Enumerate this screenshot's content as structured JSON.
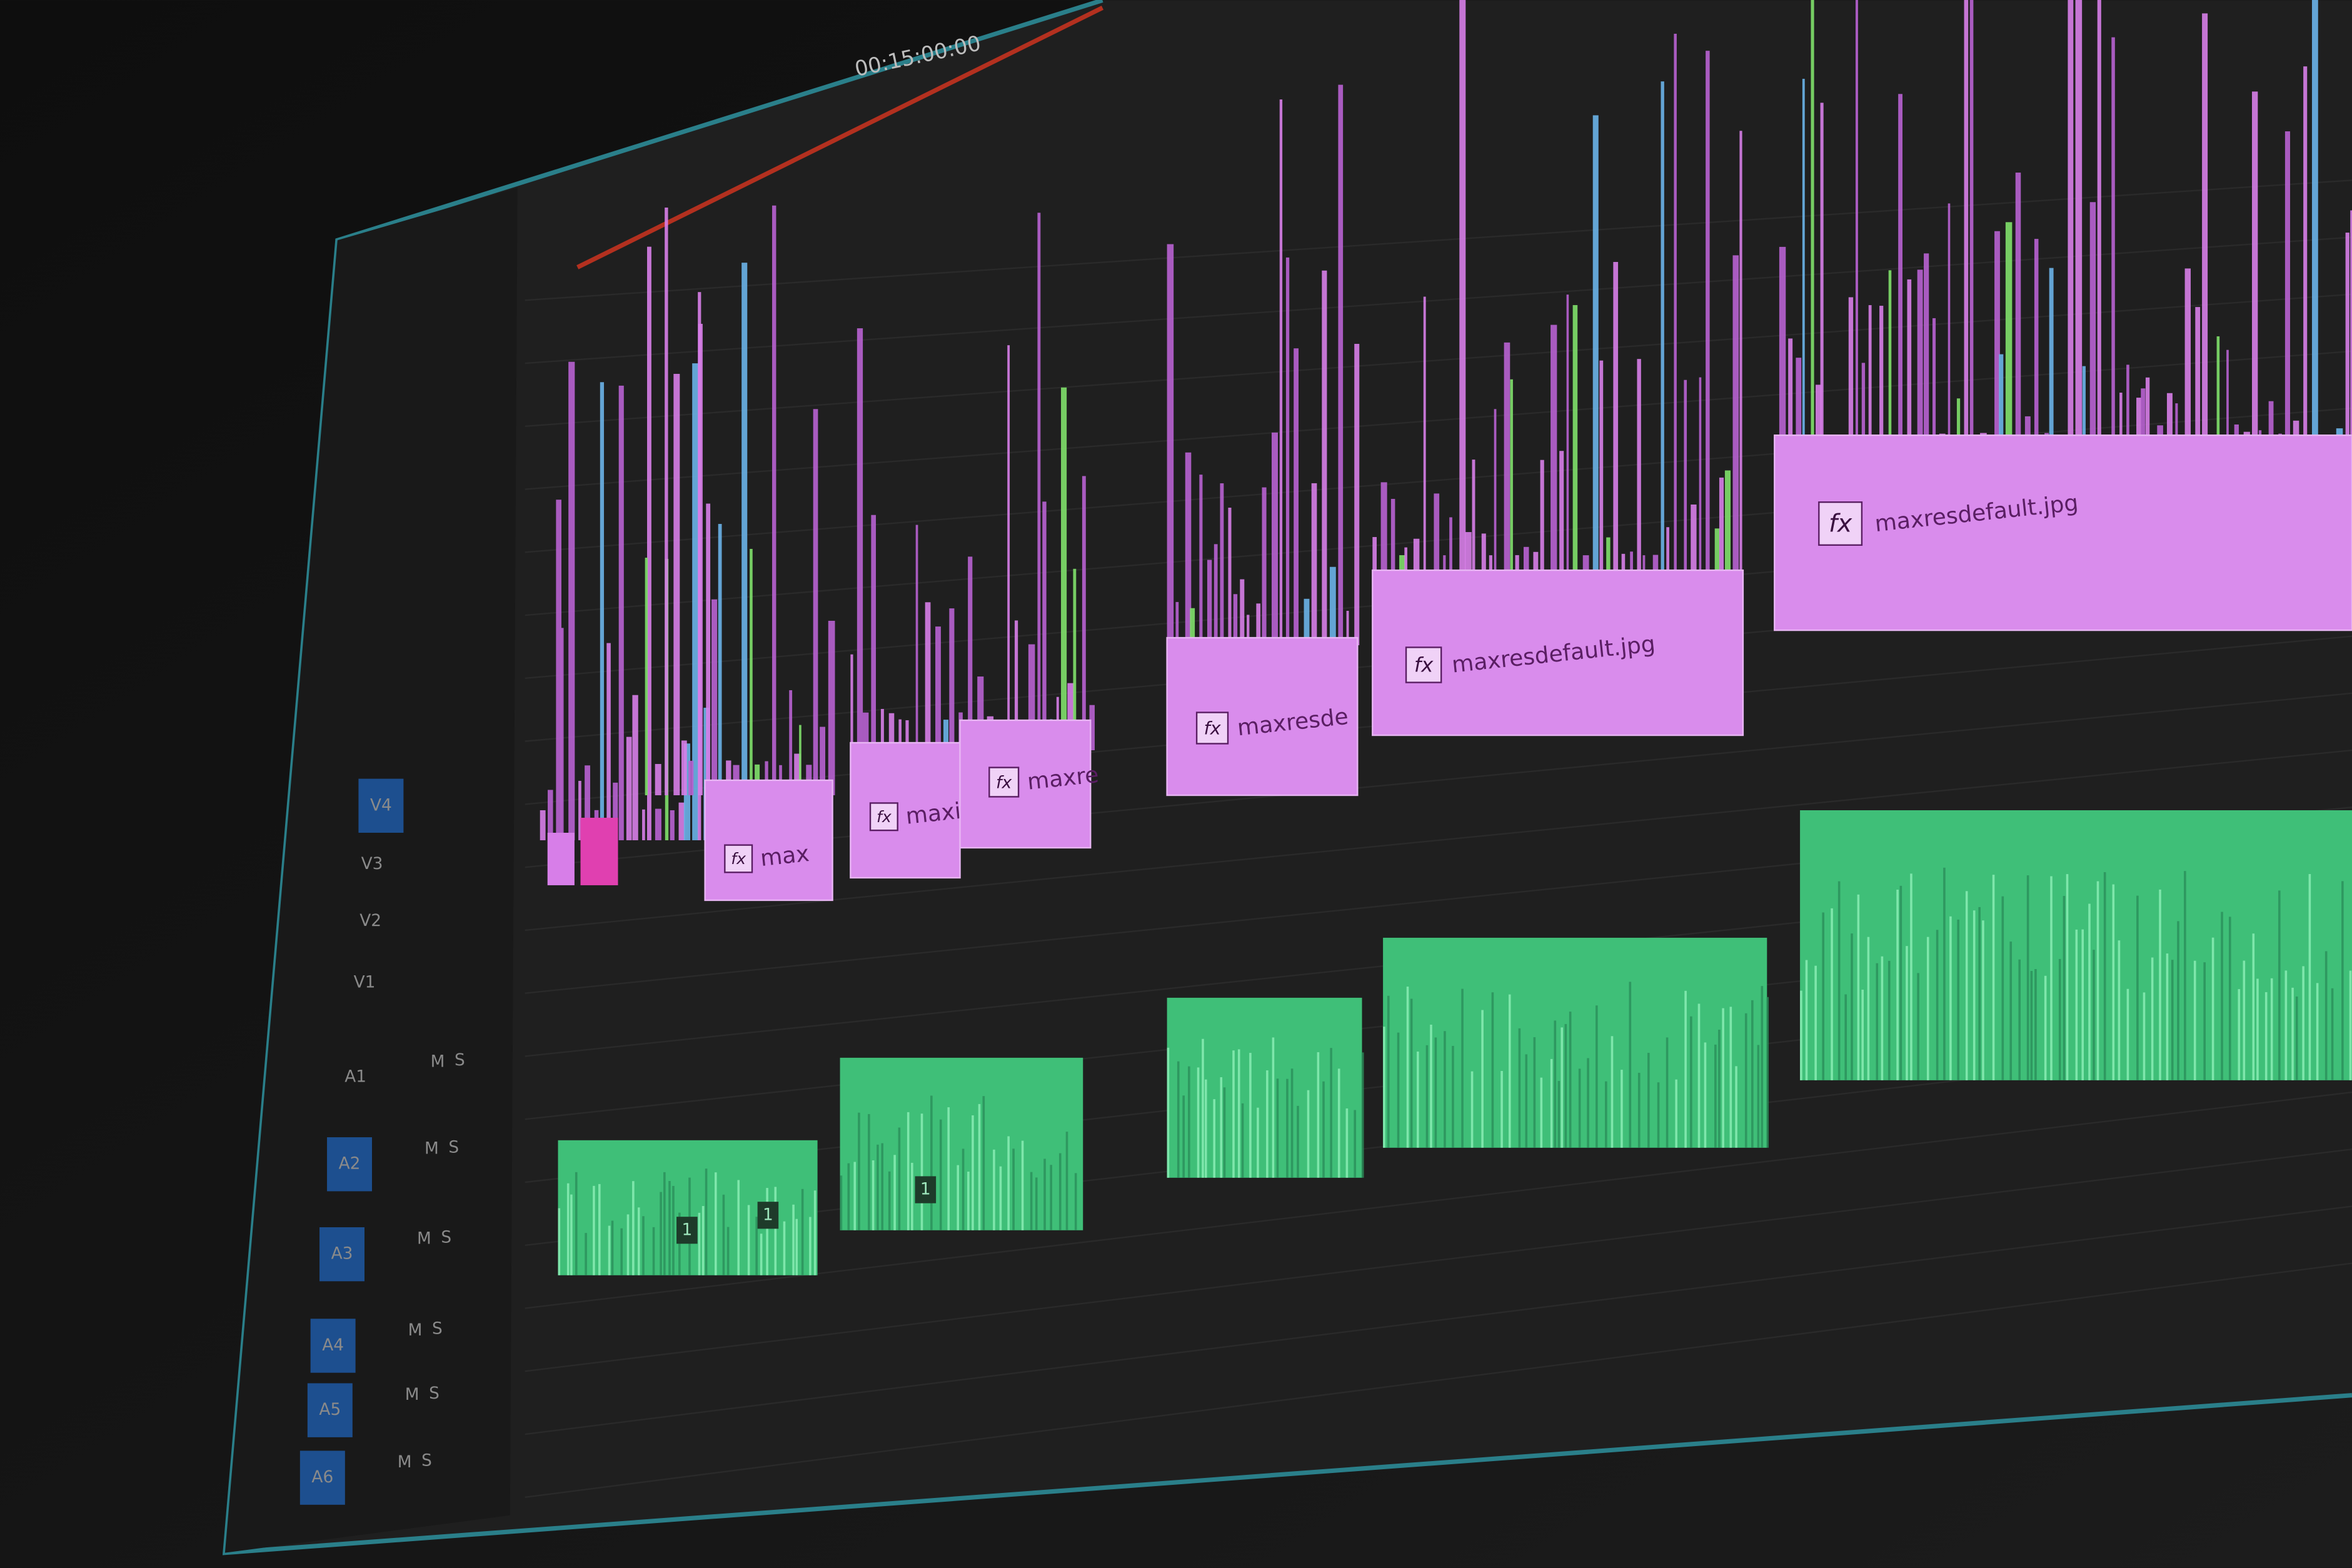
{
  "timecode": "00:15:00:00",
  "tracks": [
    {
      "label": "V4",
      "active": true
    },
    {
      "label": "V3"
    },
    {
      "label": "V2"
    },
    {
      "label": "V1"
    },
    {
      "label": "A1",
      "mute": "M",
      "solo": "S"
    },
    {
      "label": "A2",
      "mute": "M",
      "solo": "S",
      "active": true
    },
    {
      "label": "A3",
      "mute": "M",
      "solo": "S",
      "active": true
    },
    {
      "label": "A4",
      "mute": "M",
      "solo": "S",
      "active": true
    },
    {
      "label": "A5",
      "mute": "M",
      "solo": "S",
      "active": true
    },
    {
      "label": "A6",
      "mute": "M",
      "solo": "S",
      "active": true
    }
  ],
  "clips": [
    {
      "badge": "fx",
      "label": "max"
    },
    {
      "badge": "fx",
      "label": "maxi"
    },
    {
      "badge": "fx",
      "label": "maxre"
    },
    {
      "badge": "fx",
      "label": "maxresde"
    },
    {
      "badge": "fx",
      "label": "maxresdefault.jpg"
    },
    {
      "badge": "fx",
      "label": "maxresdefault.jpg"
    }
  ],
  "audio_badges": [
    "1",
    "1",
    "1"
  ]
}
